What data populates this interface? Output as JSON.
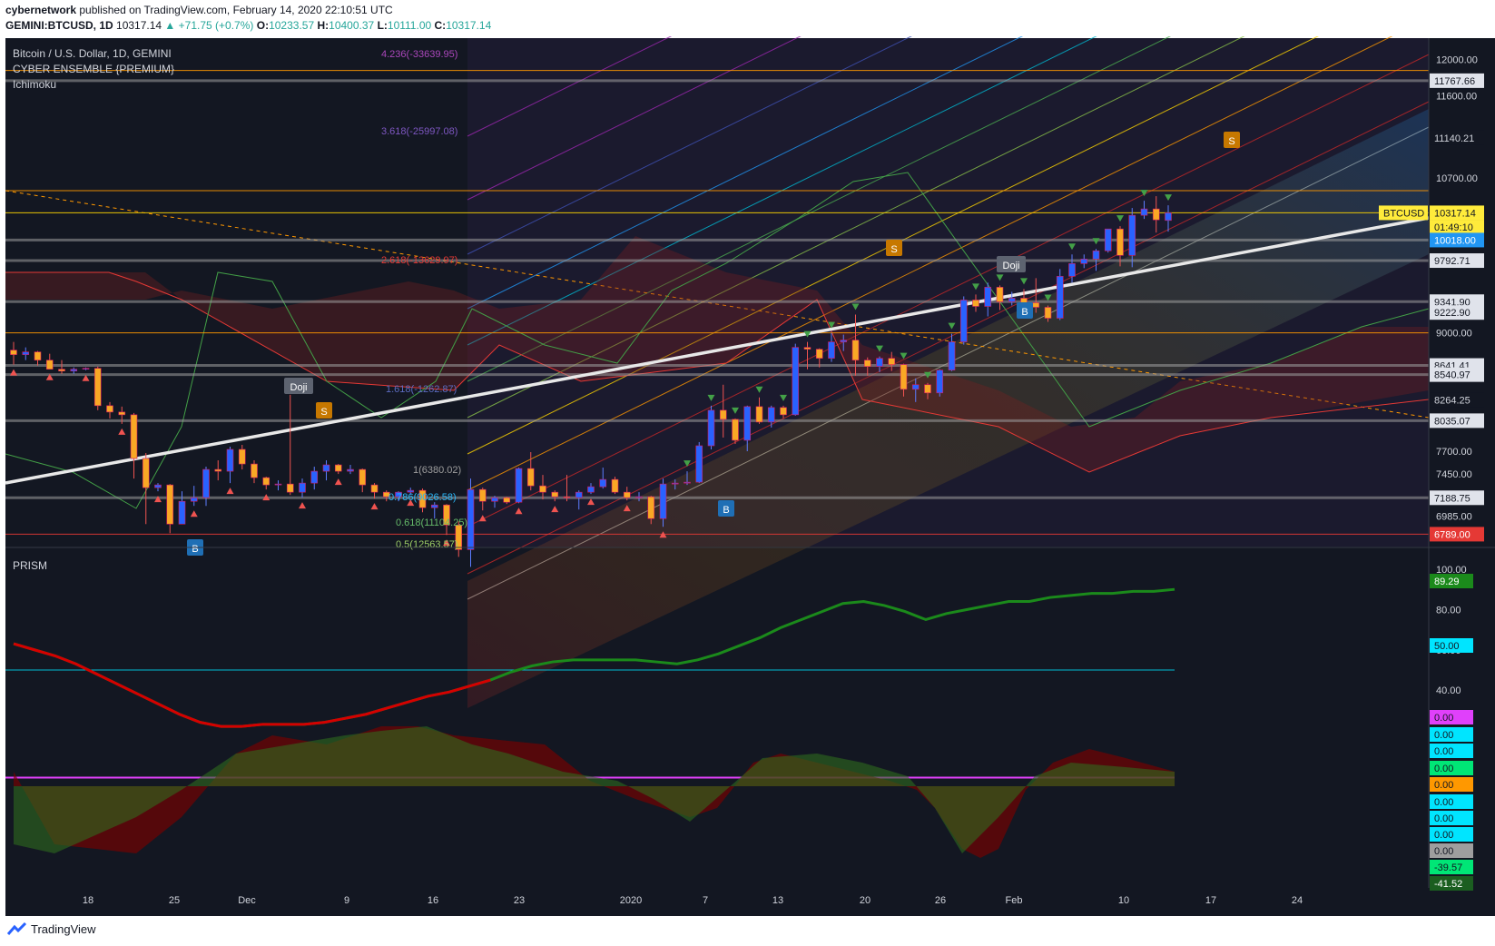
{
  "header": {
    "publisher": "cybernetwork",
    "published_text": "published on TradingView.com, February 14, 2020 22:10:51 UTC",
    "symbol": "GEMINI:BTCUSD, 1D",
    "last": "10317.14",
    "change": "+71.75 (+0.7%)",
    "open_label": "O:",
    "open": "10233.57",
    "high_label": "H:",
    "high": "10400.37",
    "low_label": "L:",
    "low": "10111.00",
    "close_label": "C:",
    "close": "10317.14"
  },
  "legend": {
    "title": "Bitcoin / U.S. Dollar, 1D, GEMINI",
    "indicator1": "CYBER ENSEMBLE {PREMIUM}",
    "indicator2": "Ichimoku",
    "prism": "PRISM"
  },
  "footer": {
    "brand": "TradingView"
  },
  "colors": {
    "background": "#131722",
    "up": "#2962ff",
    "down": "#2962ff",
    "trendline": "#e8e8e8",
    "prism_green": "#1b8a1b",
    "prism_red": "#c00000",
    "accent_yellow": "#ffff00"
  },
  "chart_data": [
    {
      "type": "candlestick",
      "title": "Bitcoin / U.S. Dollar, 1D, GEMINI",
      "x_ticks": [
        "18",
        "25",
        "Dec",
        "9",
        "16",
        "23",
        "2020",
        "7",
        "13",
        "20",
        "26",
        "Feb",
        "10",
        "17",
        "24"
      ],
      "y_ticks": [
        12000,
        11600,
        10700,
        9000,
        7700,
        7450,
        6985
      ],
      "y_labels": [
        "11767.66",
        "11140.21",
        "10317.14",
        "01:49:10",
        "10018.00",
        "9792.71",
        "9341.90",
        "9222.90",
        "8641.41",
        "8540.97",
        "8264.25",
        "8035.07",
        "7188.75",
        "6789.00"
      ],
      "fib_labels": [
        "4.236(-33639.95)",
        "3.618(-25997.08)",
        "2.618(-13629.97)",
        "1.618(-1262.87)",
        "1(6380.02)",
        "0.786(9026.58)",
        "0.618(11104.25)",
        "0.5(12563.57)"
      ],
      "last_price_tag": "BTCUSD",
      "last_price": 10317.14,
      "doji_labels": [
        "Doji",
        "Doji"
      ],
      "signal_labels": [
        "S",
        "S",
        "S",
        "B",
        "B",
        "B"
      ],
      "candles": [
        {
          "d": "Nov 10",
          "o": 8810,
          "h": 8900,
          "l": 8650,
          "c": 8760
        },
        {
          "d": "Nov 11",
          "o": 8760,
          "h": 8840,
          "l": 8700,
          "c": 8790
        },
        {
          "d": "Nov 12",
          "o": 8790,
          "h": 8800,
          "l": 8640,
          "c": 8700
        },
        {
          "d": "Nov 13",
          "o": 8700,
          "h": 8770,
          "l": 8600,
          "c": 8600
        },
        {
          "d": "Nov 14",
          "o": 8600,
          "h": 8700,
          "l": 8550,
          "c": 8580
        },
        {
          "d": "Nov 15",
          "o": 8580,
          "h": 8620,
          "l": 8550,
          "c": 8600
        },
        {
          "d": "Nov 16",
          "o": 8600,
          "h": 8620,
          "l": 8590,
          "c": 8610
        },
        {
          "d": "Nov 17",
          "o": 8610,
          "h": 8630,
          "l": 8150,
          "c": 8200
        },
        {
          "d": "Nov 18",
          "o": 8200,
          "h": 8240,
          "l": 8060,
          "c": 8130
        },
        {
          "d": "Nov 19",
          "o": 8130,
          "h": 8190,
          "l": 8000,
          "c": 8100
        },
        {
          "d": "Nov 20",
          "o": 8100,
          "h": 8120,
          "l": 7400,
          "c": 7620
        },
        {
          "d": "Nov 21",
          "o": 7620,
          "h": 7680,
          "l": 6900,
          "c": 7300
        },
        {
          "d": "Nov 22",
          "o": 7300,
          "h": 7350,
          "l": 7260,
          "c": 7330
        },
        {
          "d": "Nov 23",
          "o": 7330,
          "h": 7340,
          "l": 6800,
          "c": 6900
        },
        {
          "d": "Nov 24",
          "o": 6900,
          "h": 7260,
          "l": 6900,
          "c": 7150
        },
        {
          "d": "Nov 25",
          "o": 7150,
          "h": 7320,
          "l": 7100,
          "c": 7190
        },
        {
          "d": "Nov 26",
          "o": 7190,
          "h": 7530,
          "l": 7100,
          "c": 7500
        },
        {
          "d": "Nov 27",
          "o": 7500,
          "h": 7600,
          "l": 7380,
          "c": 7480
        },
        {
          "d": "Nov 28",
          "o": 7480,
          "h": 7750,
          "l": 7350,
          "c": 7720
        },
        {
          "d": "Nov 29",
          "o": 7720,
          "h": 7770,
          "l": 7500,
          "c": 7560
        },
        {
          "d": "Nov 30",
          "o": 7560,
          "h": 7600,
          "l": 7350,
          "c": 7410
        },
        {
          "d": "Dec 01",
          "o": 7410,
          "h": 7420,
          "l": 7280,
          "c": 7330
        },
        {
          "d": "Dec 02",
          "o": 7330,
          "h": 7380,
          "l": 7270,
          "c": 7340
        },
        {
          "d": "Dec 03",
          "o": 7340,
          "h": 8320,
          "l": 7220,
          "c": 7250
        },
        {
          "d": "Dec 04",
          "o": 7250,
          "h": 7400,
          "l": 7190,
          "c": 7350
        },
        {
          "d": "Dec 05",
          "o": 7350,
          "h": 7530,
          "l": 7280,
          "c": 7480
        },
        {
          "d": "Dec 06",
          "o": 7480,
          "h": 7600,
          "l": 7380,
          "c": 7550
        },
        {
          "d": "Dec 07",
          "o": 7550,
          "h": 7560,
          "l": 7450,
          "c": 7480
        },
        {
          "d": "Dec 08",
          "o": 7480,
          "h": 7550,
          "l": 7450,
          "c": 7500
        },
        {
          "d": "Dec 09",
          "o": 7500,
          "h": 7510,
          "l": 7250,
          "c": 7330
        },
        {
          "d": "Dec 10",
          "o": 7330,
          "h": 7350,
          "l": 7180,
          "c": 7250
        },
        {
          "d": "Dec 11",
          "o": 7250,
          "h": 7270,
          "l": 7150,
          "c": 7200
        },
        {
          "d": "Dec 12",
          "o": 7200,
          "h": 7260,
          "l": 7150,
          "c": 7250
        },
        {
          "d": "Dec 13",
          "o": 7250,
          "h": 7300,
          "l": 7220,
          "c": 7270
        },
        {
          "d": "Dec 14",
          "o": 7270,
          "h": 7290,
          "l": 7030,
          "c": 7080
        },
        {
          "d": "Dec 15",
          "o": 7080,
          "h": 7140,
          "l": 6960,
          "c": 7110
        },
        {
          "d": "Dec 16",
          "o": 7110,
          "h": 7120,
          "l": 6780,
          "c": 6890
        },
        {
          "d": "Dec 17",
          "o": 6890,
          "h": 6930,
          "l": 6540,
          "c": 6620
        },
        {
          "d": "Dec 18",
          "o": 6620,
          "h": 7400,
          "l": 6430,
          "c": 7280
        },
        {
          "d": "Dec 19",
          "o": 7280,
          "h": 7300,
          "l": 7050,
          "c": 7150
        },
        {
          "d": "Dec 20",
          "o": 7150,
          "h": 7210,
          "l": 7080,
          "c": 7190
        },
        {
          "d": "Dec 21",
          "o": 7190,
          "h": 7200,
          "l": 7120,
          "c": 7140
        },
        {
          "d": "Dec 22",
          "o": 7140,
          "h": 7520,
          "l": 7130,
          "c": 7510
        },
        {
          "d": "Dec 23",
          "o": 7510,
          "h": 7690,
          "l": 7270,
          "c": 7320
        },
        {
          "d": "Dec 24",
          "o": 7320,
          "h": 7440,
          "l": 7170,
          "c": 7250
        },
        {
          "d": "Dec 25",
          "o": 7250,
          "h": 7270,
          "l": 7150,
          "c": 7200
        },
        {
          "d": "Dec 26",
          "o": 7200,
          "h": 7440,
          "l": 7150,
          "c": 7190
        },
        {
          "d": "Dec 27",
          "o": 7190,
          "h": 7270,
          "l": 7060,
          "c": 7250
        },
        {
          "d": "Dec 28",
          "o": 7250,
          "h": 7350,
          "l": 7230,
          "c": 7310
        },
        {
          "d": "Dec 29",
          "o": 7310,
          "h": 7520,
          "l": 7290,
          "c": 7390
        },
        {
          "d": "Dec 30",
          "o": 7390,
          "h": 7420,
          "l": 7230,
          "c": 7250
        },
        {
          "d": "Dec 31",
          "o": 7250,
          "h": 7310,
          "l": 7160,
          "c": 7190
        },
        {
          "d": "Jan 01",
          "o": 7190,
          "h": 7250,
          "l": 7150,
          "c": 7200
        },
        {
          "d": "Jan 02",
          "o": 7200,
          "h": 7210,
          "l": 6900,
          "c": 6960
        },
        {
          "d": "Jan 03",
          "o": 6960,
          "h": 7400,
          "l": 6870,
          "c": 7340
        },
        {
          "d": "Jan 04",
          "o": 7340,
          "h": 7390,
          "l": 7280,
          "c": 7350
        },
        {
          "d": "Jan 05",
          "o": 7350,
          "h": 7480,
          "l": 7330,
          "c": 7360
        },
        {
          "d": "Jan 06",
          "o": 7360,
          "h": 7800,
          "l": 7350,
          "c": 7760
        },
        {
          "d": "Jan 07",
          "o": 7760,
          "h": 8200,
          "l": 7720,
          "c": 8150
        },
        {
          "d": "Jan 08",
          "o": 8150,
          "h": 8430,
          "l": 7850,
          "c": 8050
        },
        {
          "d": "Jan 09",
          "o": 8050,
          "h": 8060,
          "l": 7780,
          "c": 7820
        },
        {
          "d": "Jan 10",
          "o": 7820,
          "h": 8200,
          "l": 7700,
          "c": 8190
        },
        {
          "d": "Jan 11",
          "o": 8190,
          "h": 8290,
          "l": 8000,
          "c": 8020
        },
        {
          "d": "Jan 12",
          "o": 8020,
          "h": 8200,
          "l": 7960,
          "c": 8180
        },
        {
          "d": "Jan 13",
          "o": 8180,
          "h": 8200,
          "l": 8060,
          "c": 8100
        },
        {
          "d": "Jan 14",
          "o": 8100,
          "h": 8880,
          "l": 8090,
          "c": 8840
        },
        {
          "d": "Jan 15",
          "o": 8840,
          "h": 8900,
          "l": 8600,
          "c": 8820
        },
        {
          "d": "Jan 16",
          "o": 8820,
          "h": 8830,
          "l": 8620,
          "c": 8720
        },
        {
          "d": "Jan 17",
          "o": 8720,
          "h": 9000,
          "l": 8680,
          "c": 8900
        },
        {
          "d": "Jan 18",
          "o": 8900,
          "h": 8980,
          "l": 8800,
          "c": 8920
        },
        {
          "d": "Jan 19",
          "o": 8920,
          "h": 9200,
          "l": 8530,
          "c": 8700
        },
        {
          "d": "Jan 20",
          "o": 8700,
          "h": 8730,
          "l": 8530,
          "c": 8630
        },
        {
          "d": "Jan 21",
          "o": 8630,
          "h": 8740,
          "l": 8570,
          "c": 8720
        },
        {
          "d": "Jan 22",
          "o": 8720,
          "h": 8790,
          "l": 8580,
          "c": 8650
        },
        {
          "d": "Jan 23",
          "o": 8650,
          "h": 8660,
          "l": 8300,
          "c": 8380
        },
        {
          "d": "Jan 24",
          "o": 8380,
          "h": 8500,
          "l": 8240,
          "c": 8430
        },
        {
          "d": "Jan 25",
          "o": 8430,
          "h": 8450,
          "l": 8270,
          "c": 8340
        },
        {
          "d": "Jan 26",
          "o": 8340,
          "h": 8600,
          "l": 8300,
          "c": 8590
        },
        {
          "d": "Jan 27",
          "o": 8590,
          "h": 8990,
          "l": 8580,
          "c": 8900
        },
        {
          "d": "Jan 28",
          "o": 8900,
          "h": 9400,
          "l": 8870,
          "c": 9360
        },
        {
          "d": "Jan 29",
          "o": 9360,
          "h": 9420,
          "l": 9230,
          "c": 9290
        },
        {
          "d": "Jan 30",
          "o": 9290,
          "h": 9550,
          "l": 9180,
          "c": 9500
        },
        {
          "d": "Jan 31",
          "o": 9500,
          "h": 9520,
          "l": 9250,
          "c": 9340
        },
        {
          "d": "Feb 01",
          "o": 9340,
          "h": 9450,
          "l": 9300,
          "c": 9380
        },
        {
          "d": "Feb 02",
          "o": 9380,
          "h": 9480,
          "l": 9220,
          "c": 9330
        },
        {
          "d": "Feb 03",
          "o": 9330,
          "h": 9600,
          "l": 9220,
          "c": 9280
        },
        {
          "d": "Feb 04",
          "o": 9280,
          "h": 9300,
          "l": 9120,
          "c": 9160
        },
        {
          "d": "Feb 05",
          "o": 9160,
          "h": 9700,
          "l": 9140,
          "c": 9620
        },
        {
          "d": "Feb 06",
          "o": 9620,
          "h": 9860,
          "l": 9550,
          "c": 9760
        },
        {
          "d": "Feb 07",
          "o": 9760,
          "h": 9860,
          "l": 9710,
          "c": 9810
        },
        {
          "d": "Feb 08",
          "o": 9810,
          "h": 9920,
          "l": 9680,
          "c": 9900
        },
        {
          "d": "Feb 09",
          "o": 9900,
          "h": 10140,
          "l": 9880,
          "c": 10140
        },
        {
          "d": "Feb 10",
          "o": 10140,
          "h": 10170,
          "l": 9730,
          "c": 9850
        },
        {
          "d": "Feb 11",
          "o": 9850,
          "h": 10370,
          "l": 9720,
          "c": 10290
        },
        {
          "d": "Feb 12",
          "o": 10290,
          "h": 10450,
          "l": 10250,
          "c": 10360
        },
        {
          "d": "Feb 13",
          "o": 10360,
          "h": 10500,
          "l": 10100,
          "c": 10240
        },
        {
          "d": "Feb 14",
          "o": 10233.57,
          "h": 10400.37,
          "l": 10111.0,
          "c": 10317.14
        }
      ]
    },
    {
      "type": "line",
      "title": "PRISM",
      "y_ticks": [
        100,
        80,
        60,
        40,
        20
      ],
      "levels": [
        {
          "label": "50.00",
          "value": 50
        },
        {
          "label": "0.00",
          "value": 0
        }
      ],
      "value_labels": [
        "89.29",
        "50.00",
        "0.00",
        "0.00",
        "0.00",
        "0.00",
        "0.00",
        "0.00",
        "0.00",
        "0.00",
        "0.00",
        "-39.57",
        "-41.52"
      ],
      "series": [
        {
          "values": [
            63,
            60,
            57,
            53,
            48,
            43,
            38,
            33,
            28,
            24,
            22,
            22,
            23,
            23,
            23,
            24,
            26,
            28,
            31,
            34,
            37,
            39,
            42,
            45,
            49,
            52,
            54,
            55,
            55,
            55,
            55,
            54,
            53,
            55,
            58,
            62,
            66,
            71,
            75,
            79,
            83,
            84,
            82,
            79,
            75,
            78,
            80,
            82,
            84,
            84,
            86,
            87,
            88,
            88,
            89,
            89,
            90
          ]
        }
      ]
    }
  ]
}
